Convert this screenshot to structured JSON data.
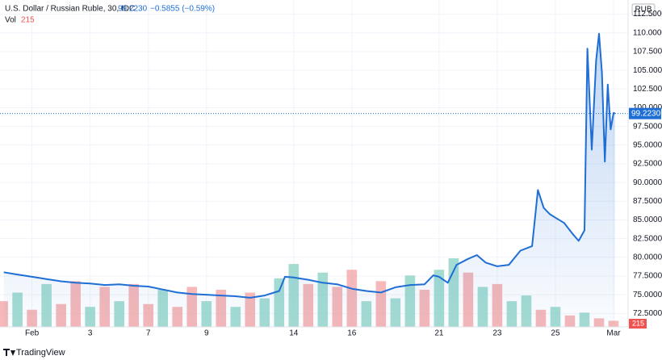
{
  "chart_data": {
    "type": "line",
    "header": {
      "symbol": "U.S. Dollar / Russian Ruble, 30, IDC",
      "price": "99.2230",
      "change": "−0.5855 (−0.59%)",
      "volume_label": "Vol",
      "volume": "215"
    },
    "currency": "RUB",
    "brand": "TradingView",
    "xlim": [
      -1.1,
      20.5
    ],
    "xticks": [
      {
        "value": 0,
        "label": "Feb"
      },
      {
        "value": 2,
        "label": "3"
      },
      {
        "value": 4,
        "label": "7"
      },
      {
        "value": 6,
        "label": "9"
      },
      {
        "value": 9,
        "label": "14"
      },
      {
        "value": 11,
        "label": "16"
      },
      {
        "value": 14,
        "label": "21"
      },
      {
        "value": 16,
        "label": "23"
      },
      {
        "value": 18,
        "label": "25"
      },
      {
        "value": 20,
        "label": "Mar"
      }
    ],
    "ylim": [
      70.7,
      114.4
    ],
    "yticks": [
      {
        "value": 72.5,
        "label": "72.5000"
      },
      {
        "value": 75,
        "label": "75.0000"
      },
      {
        "value": 77.5,
        "label": "77.5000"
      },
      {
        "value": 80,
        "label": "80.0000"
      },
      {
        "value": 82.5,
        "label": "82.5000"
      },
      {
        "value": 85,
        "label": "85.0000"
      },
      {
        "value": 87.5,
        "label": "87.5000"
      },
      {
        "value": 90,
        "label": "90.0000"
      },
      {
        "value": 92.5,
        "label": "92.5000"
      },
      {
        "value": 95,
        "label": "95.0000"
      },
      {
        "value": 97.5,
        "label": "97.5000"
      },
      {
        "value": 100,
        "label": "100.0000"
      },
      {
        "value": 102.5,
        "label": "102.5000"
      },
      {
        "value": 105,
        "label": "105.0000"
      },
      {
        "value": 107.5,
        "label": "107.5000"
      },
      {
        "value": 110,
        "label": "110.0000"
      },
      {
        "value": 112.5,
        "label": "112.5000"
      }
    ],
    "grid": true,
    "series": [
      {
        "name": "USD/RUB",
        "color": "#1e6ed6",
        "x": [
          -0.97,
          -0.5,
          0,
          0.5,
          1,
          1.5,
          2,
          2.5,
          3,
          3.5,
          4,
          4.5,
          5,
          5.5,
          6,
          6.5,
          7,
          7.5,
          8,
          8.5,
          8.7,
          9,
          9.5,
          10,
          10.5,
          11,
          11.5,
          12,
          12.5,
          13,
          13.5,
          13.8,
          14,
          14.3,
          14.6,
          15,
          15.3,
          15.6,
          16,
          16.4,
          16.8,
          17.2,
          17.4,
          17.6,
          17.8,
          18,
          18.3,
          18.6,
          18.8,
          19.0,
          19.1,
          19.25,
          19.4,
          19.5,
          19.6,
          19.7,
          19.8,
          19.9,
          20.0,
          20.05
        ],
        "values": [
          78.0,
          77.7,
          77.4,
          77.1,
          76.8,
          76.6,
          76.5,
          76.3,
          76.4,
          76.2,
          76.1,
          75.7,
          75.3,
          75.1,
          75.0,
          74.9,
          74.8,
          74.6,
          74.9,
          75.5,
          77.4,
          77.3,
          77.0,
          76.6,
          76.4,
          75.8,
          75.5,
          75.3,
          76.0,
          76.3,
          76.4,
          77.6,
          77.4,
          76.6,
          79.0,
          79.8,
          80.3,
          79.3,
          78.8,
          79.0,
          80.9,
          81.5,
          89.0,
          86.6,
          85.8,
          85.3,
          84.6,
          83.1,
          82.2,
          83.6,
          107.9,
          94.4,
          106.3,
          109.9,
          104.7,
          92.8,
          103.1,
          97.1,
          99.3,
          99.223
        ]
      }
    ],
    "volume": {
      "x": [
        -1,
        -0.5,
        0,
        0.5,
        1,
        1.5,
        2,
        2.5,
        3,
        3.5,
        4,
        4.5,
        5,
        5.5,
        6,
        6.5,
        7,
        7.5,
        8,
        8.5,
        9,
        9.5,
        10,
        10.5,
        11,
        11.5,
        12,
        12.5,
        13,
        13.5,
        14,
        14.5,
        15,
        15.5,
        16,
        16.5,
        17,
        17.5,
        18,
        18.5,
        19,
        19.5,
        20
      ],
      "values": [
        900,
        1200,
        600,
        1500,
        800,
        1600,
        700,
        1400,
        900,
        1500,
        800,
        1300,
        700,
        1400,
        900,
        1300,
        700,
        1200,
        1000,
        1700,
        2200,
        1500,
        1900,
        1400,
        2000,
        900,
        1600,
        1000,
        1800,
        1300,
        2000,
        2400,
        1900,
        1400,
        1500,
        900,
        1100,
        600,
        700,
        400,
        500,
        300,
        215
      ],
      "colors": [
        "#f4a6a6",
        "#8fd3c7",
        "#f4a6a6",
        "#8fd3c7",
        "#f4a6a6",
        "#f4a6a6",
        "#8fd3c7",
        "#f4a6a6",
        "#8fd3c7",
        "#f4a6a6",
        "#f4a6a6",
        "#8fd3c7",
        "#f4a6a6",
        "#f4a6a6",
        "#8fd3c7",
        "#f4a6a6",
        "#8fd3c7",
        "#f4a6a6",
        "#8fd3c7",
        "#8fd3c7",
        "#8fd3c7",
        "#f4a6a6",
        "#8fd3c7",
        "#f4a6a6",
        "#f4a6a6",
        "#8fd3c7",
        "#f4a6a6",
        "#8fd3c7",
        "#8fd3c7",
        "#f4a6a6",
        "#8fd3c7",
        "#8fd3c7",
        "#f4a6a6",
        "#8fd3c7",
        "#f4a6a6",
        "#8fd3c7",
        "#8fd3c7",
        "#f4a6a6",
        "#8fd3c7",
        "#f4a6a6",
        "#8fd3c7",
        "#f4a6a6",
        "#f4a6a6"
      ]
    }
  }
}
